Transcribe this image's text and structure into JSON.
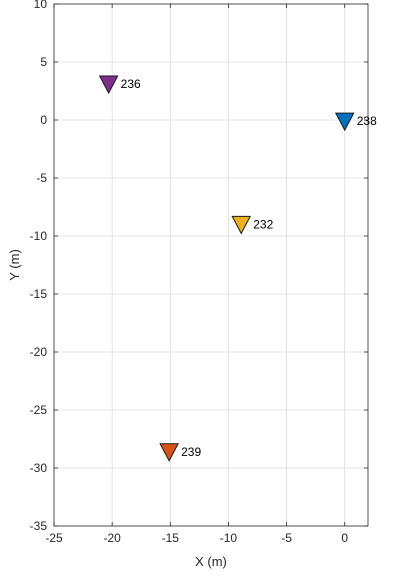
{
  "chart_data": {
    "type": "scatter",
    "title": "",
    "xlabel": "X (m)",
    "ylabel": "Y (m)",
    "xlim": [
      -25,
      2
    ],
    "ylim": [
      -35,
      10
    ],
    "xticks": [
      -25,
      -20,
      -15,
      -10,
      -5,
      0
    ],
    "yticks": [
      10,
      5,
      0,
      -5,
      -10,
      -15,
      -20,
      -25,
      -30,
      -35
    ],
    "xtick_labels": [
      "-25",
      "-20",
      "-15",
      "-10",
      "-5",
      "0"
    ],
    "ytick_labels": [
      "10",
      "5",
      "0",
      "-5",
      "-10",
      "-15",
      "-20",
      "-25",
      "-30",
      "-35"
    ],
    "grid": true,
    "marker": "triangle-down",
    "points": [
      {
        "label": "236",
        "x": -20.3,
        "y": 3.1,
        "color": "#7E2F8E"
      },
      {
        "label": "238",
        "x": 0.0,
        "y": -0.1,
        "color": "#0072BD"
      },
      {
        "label": "232",
        "x": -8.9,
        "y": -9.0,
        "color": "#EDB120"
      },
      {
        "label": "239",
        "x": -15.1,
        "y": -28.6,
        "color": "#D95319"
      }
    ]
  }
}
